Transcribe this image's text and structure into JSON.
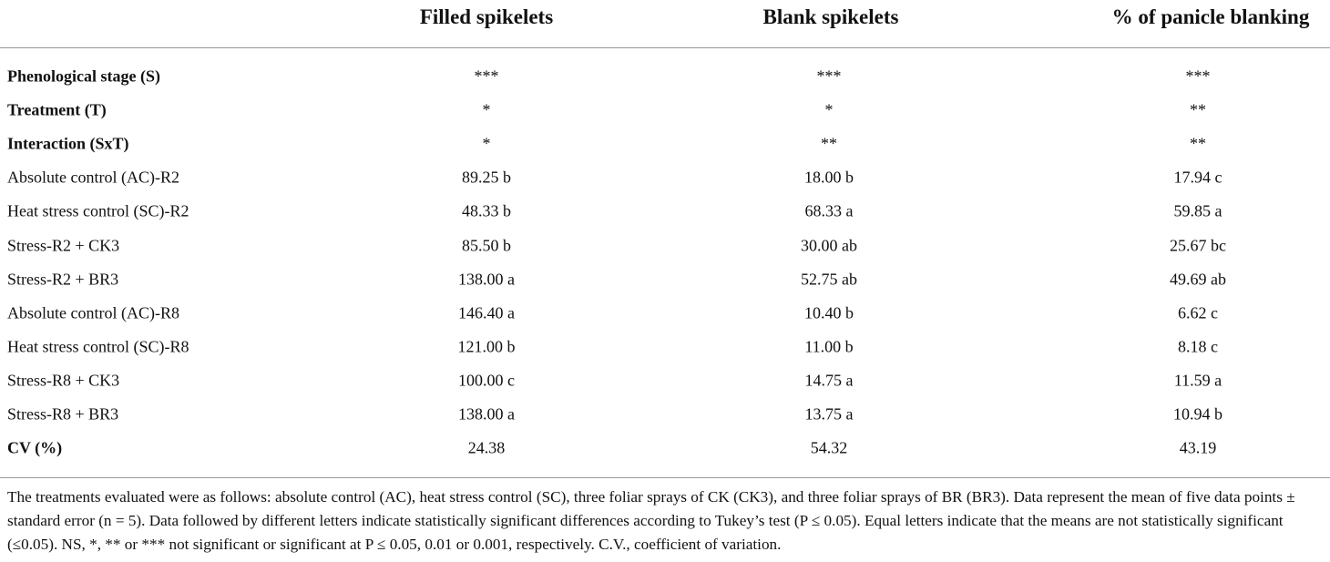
{
  "table": {
    "header": [
      "Filled spikelets",
      "Blank spikelets",
      "% of panicle blanking"
    ],
    "rows": [
      [
        "Phenological stage (S)",
        "***",
        "***",
        "***"
      ],
      [
        "Treatment (T)",
        "*",
        "*",
        "**"
      ],
      [
        "Interaction (SxT)",
        "*",
        "**",
        "**"
      ],
      [
        "Absolute control (AC)-R2",
        "89.25 b",
        "18.00 b",
        "17.94 c"
      ],
      [
        "Heat stress control (SC)-R2",
        "48.33 b",
        "68.33 a",
        "59.85 a"
      ],
      [
        "Stress-R2 + CK3",
        "85.50 b",
        "30.00 ab",
        "25.67 bc"
      ],
      [
        "Stress-R2 + BR3",
        "138.00 a",
        "52.75 ab",
        "49.69 ab"
      ],
      [
        "Absolute control (AC)-R8",
        "146.40 a",
        "10.40 b",
        "6.62 c"
      ],
      [
        "Heat stress control (SC)-R8",
        "121.00 b",
        "11.00 b",
        "8.18 c"
      ],
      [
        "Stress-R8 + CK3",
        "100.00 c",
        "14.75 a",
        "11.59 a"
      ],
      [
        "Stress-R8 + BR3",
        "138.00 a",
        "13.75 a",
        "10.94 b"
      ],
      [
        "CV (%)",
        "24.38",
        "54.32",
        "43.19"
      ]
    ]
  },
  "footnote": "The treatments evaluated were as follows: absolute control (AC), heat stress control (SC), three foliar sprays of CK (CK3), and three foliar sprays of BR (BR3). Data represent the mean of five data points ± standard error (n = 5). Data followed by different letters indicate statistically significant differences according to Tukey’s test (P ≤ 0.05). Equal letters indicate that the means are not statistically significant (≤0.05). NS, *, ** or *** not significant or significant at P ≤ 0.05, 0.01 or 0.001, respectively. C.V., coefficient of variation."
}
